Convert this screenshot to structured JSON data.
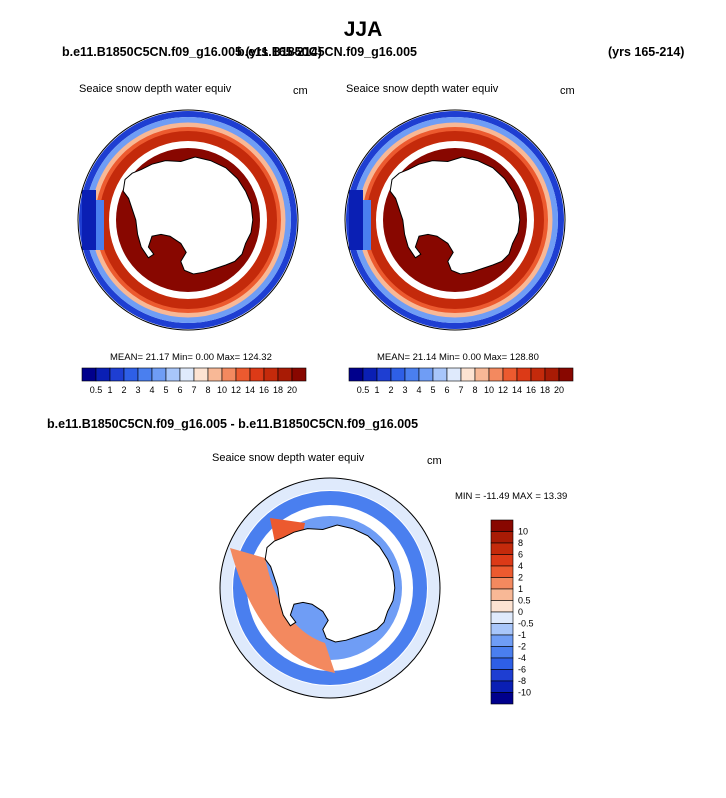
{
  "page_title": "JJA",
  "top_left_case": "b.e11.B1850C5CN.f09_g16.005 (yrs 165-214)",
  "top_overlap_case": "b.e11.B1850C5CN.f09_g16.005",
  "top_right_years": "(yrs 165-214)",
  "diff_title": "b.e11.B1850C5CN.f09_g16.005 - b.e11.B1850C5CN.f09_g16.005",
  "variable": "Seaice snow depth water equiv",
  "units": "cm",
  "colors": {
    "seq": [
      "#00008c",
      "#0a1fb4",
      "#1e3ed2",
      "#2e5fe6",
      "#4a7fef",
      "#6f9df5",
      "#a8c6fa",
      "#dfeafc",
      "#fde3d2",
      "#f8b896",
      "#f3895f",
      "#ec5a2f",
      "#dc3a17",
      "#c42a0b",
      "#a81b05",
      "#880700"
    ],
    "div": [
      "#00008c",
      "#0a1fb4",
      "#1e3ed2",
      "#2e5fe6",
      "#4a7fef",
      "#6f9df5",
      "#a8c6fa",
      "#dfeafc",
      "#fde3d2",
      "#f8b896",
      "#f3895f",
      "#ec5a2f",
      "#dc3a17",
      "#c42a0b",
      "#a81b05",
      "#880700"
    ]
  },
  "chart_data": [
    {
      "type": "heatmap",
      "title": "Seaice snow depth water equiv",
      "units": "cm",
      "projection": "south polar stereographic",
      "stats": {
        "mean": "21.17",
        "min": "0.00",
        "max": "124.32"
      },
      "stats_text": "MEAN=  21.17  Min=   0.00  Max= 124.32",
      "colorbar_levels": [
        "0.5",
        "1",
        "2",
        "3",
        "4",
        "5",
        "6",
        "7",
        "8",
        "10",
        "12",
        "14",
        "16",
        "18",
        "20"
      ],
      "colorbar_orientation": "horizontal"
    },
    {
      "type": "heatmap",
      "title": "Seaice snow depth water equiv",
      "units": "cm",
      "projection": "south polar stereographic",
      "stats": {
        "mean": "21.14",
        "min": "0.00",
        "max": "128.80"
      },
      "stats_text": "MEAN=  21.14  Min=   0.00  Max= 128.80",
      "colorbar_levels": [
        "0.5",
        "1",
        "2",
        "3",
        "4",
        "5",
        "6",
        "7",
        "8",
        "10",
        "12",
        "14",
        "16",
        "18",
        "20"
      ],
      "colorbar_orientation": "horizontal"
    },
    {
      "type": "heatmap",
      "title": "Seaice snow depth water equiv",
      "units": "cm",
      "projection": "south polar stereographic",
      "stats": {
        "min": "-11.49",
        "max": "13.39"
      },
      "stats_text": "MIN = -11.49 MAX =  13.39",
      "colorbar_levels": [
        "10",
        "8",
        "6",
        "4",
        "2",
        "1",
        "0.5",
        "0",
        "-0.5",
        "-1",
        "-2",
        "-4",
        "-6",
        "-8",
        "-10"
      ],
      "colorbar_orientation": "vertical"
    }
  ]
}
